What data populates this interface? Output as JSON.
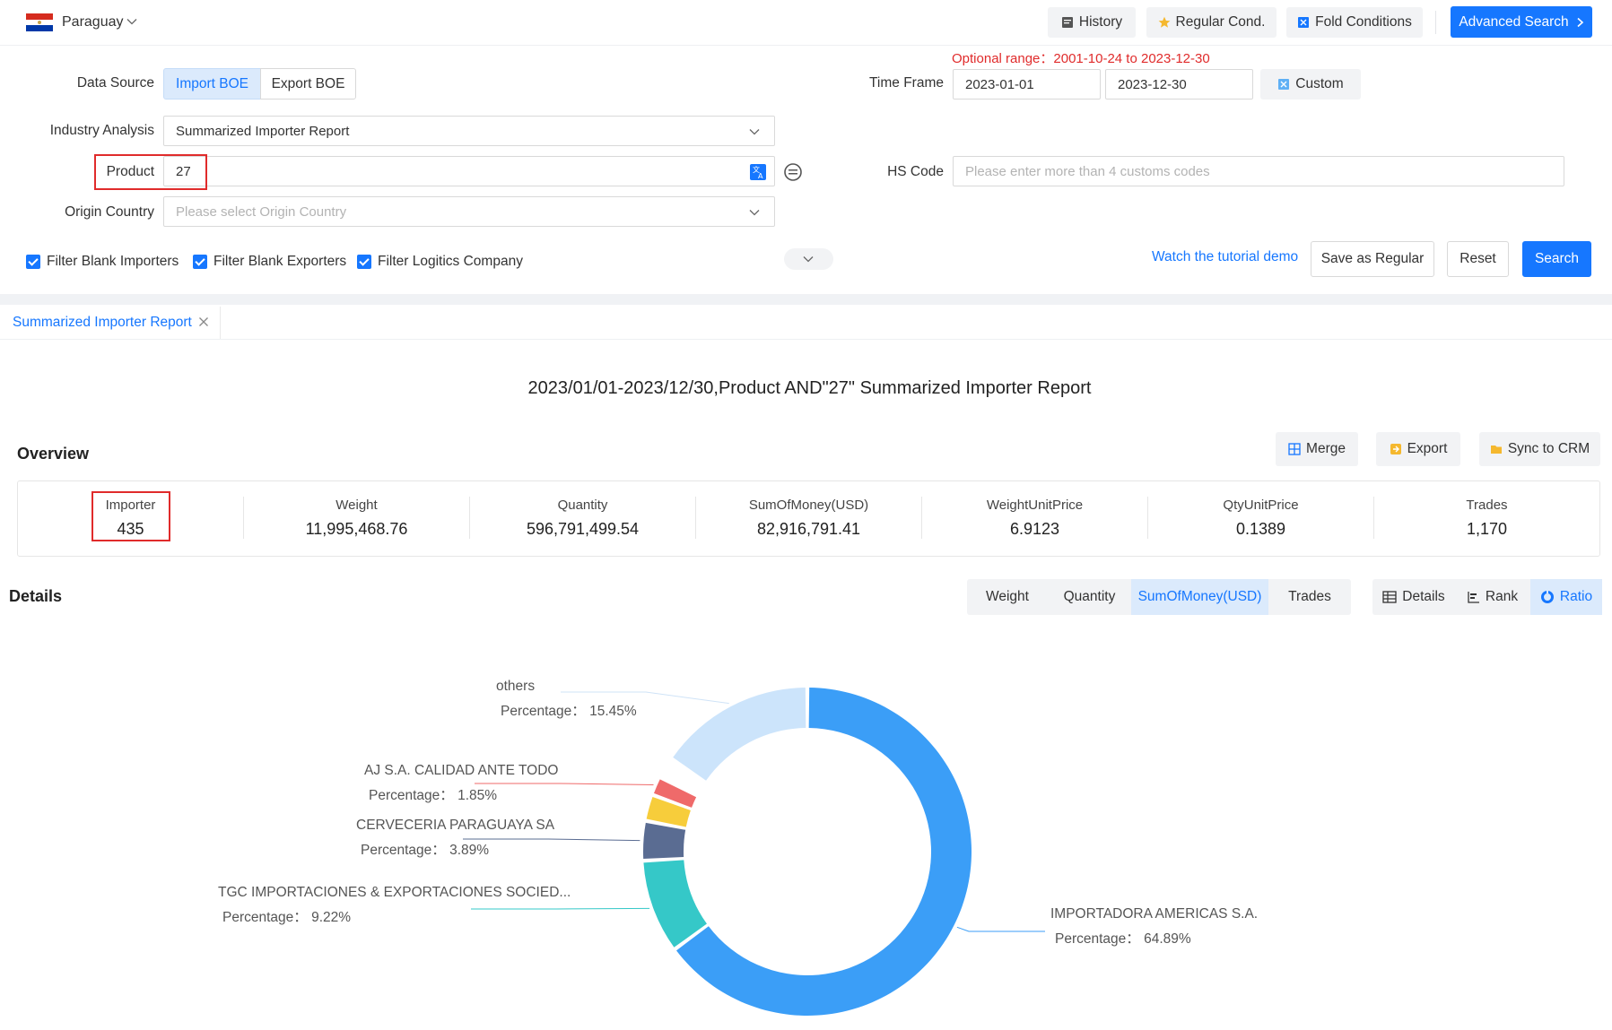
{
  "topbar": {
    "country": "Paraguay",
    "history": "History",
    "regular_cond": "Regular Cond.",
    "fold_conditions": "Fold Conditions",
    "advanced_search": "Advanced Search"
  },
  "form": {
    "optional_range": "Optional range：2001-10-24 to 2023-12-30",
    "data_source_label": "Data Source",
    "import_boe": "Import BOE",
    "export_boe": "Export BOE",
    "time_frame_label": "Time Frame",
    "time_start": "2023-01-01",
    "time_end": "2023-12-30",
    "custom": "Custom",
    "industry_label": "Industry Analysis",
    "industry_value": "Summarized Importer Report",
    "product_label": "Product",
    "product_value": "27",
    "hs_label": "HS Code",
    "hs_placeholder": "Please enter more than 4 customs codes",
    "origin_label": "Origin Country",
    "origin_placeholder": "Please select Origin Country",
    "filter_blank_importers": "Filter Blank Importers",
    "filter_blank_exporters": "Filter Blank Exporters",
    "filter_logistics": "Filter Logitics Company",
    "tutorial": "Watch the tutorial demo",
    "save_regular": "Save as Regular",
    "reset": "Reset",
    "search": "Search"
  },
  "tabs": {
    "active": "Summarized Importer Report"
  },
  "report": {
    "title": "2023/01/01-2023/12/30,Product AND\"27\" Summarized Importer Report",
    "overview_heading": "Overview",
    "merge": "Merge",
    "export": "Export",
    "sync": "Sync to CRM",
    "stats": [
      {
        "label": "Importer",
        "value": "435"
      },
      {
        "label": "Weight",
        "value": "11,995,468.76"
      },
      {
        "label": "Quantity",
        "value": "596,791,499.54"
      },
      {
        "label": "SumOfMoney(USD)",
        "value": "82,916,791.41"
      },
      {
        "label": "WeightUnitPrice",
        "value": "6.9123"
      },
      {
        "label": "QtyUnitPrice",
        "value": "0.1389"
      },
      {
        "label": "Trades",
        "value": "1,170"
      }
    ],
    "details_heading": "Details",
    "metric_tabs": [
      "Weight",
      "Quantity",
      "SumOfMoney(USD)",
      "Trades"
    ],
    "view_tabs": [
      "Details",
      "Rank",
      "Ratio"
    ]
  },
  "chart_data": {
    "type": "pie",
    "donut": true,
    "value_prefix": "Percentage：",
    "slices": [
      {
        "name": "IMPORTADORA AMERICAS S.A.",
        "percent": 64.89,
        "label": "64.89%",
        "color": "#3b9ef7"
      },
      {
        "name": "TGC IMPORTACIONES & EXPORTACIONES SOCIED...",
        "percent": 9.22,
        "label": "9.22%",
        "color": "#35c8c8"
      },
      {
        "name": "CERVECERIA PARAGUAYA SA",
        "percent": 3.89,
        "label": "3.89%",
        "color": "#5a6c92"
      },
      {
        "name": "",
        "percent": 2.6,
        "label": "",
        "color": "#f7cd3b"
      },
      {
        "name": "AJ S.A. CALIDAD ANTE TODO",
        "percent": 1.85,
        "label": "1.85%",
        "color": "#ef6a6a"
      },
      {
        "name": "",
        "percent": 2.1,
        "label": "",
        "color": "#ffffff"
      },
      {
        "name": "others",
        "percent": 15.45,
        "label": "15.45%",
        "color": "#cce4fb"
      }
    ]
  },
  "colors": {
    "primary": "#1677ff",
    "danger": "#e02b2b"
  }
}
